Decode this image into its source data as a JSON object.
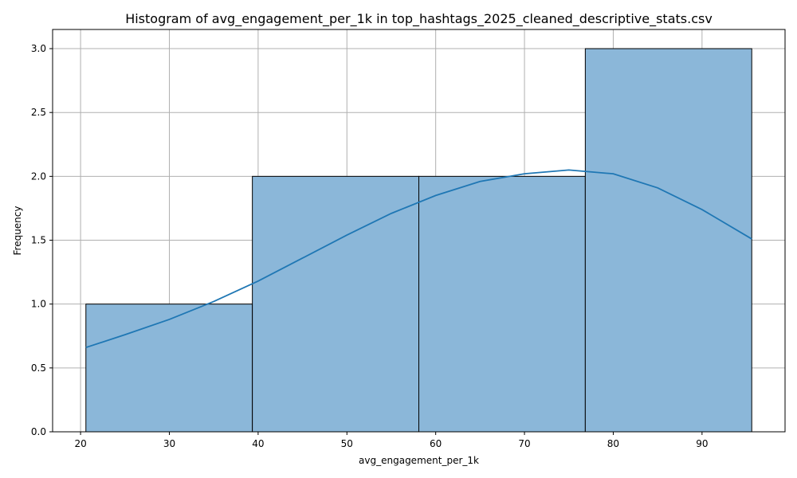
{
  "chart_data": {
    "type": "bar",
    "title": "Histogram of avg_engagement_per_1k in top_hashtags_2025_cleaned_descriptive_stats.csv",
    "xlabel": "avg_engagement_per_1k",
    "ylabel": "Frequency",
    "bins": [
      {
        "start": 20.6,
        "end": 39.35,
        "count": 1
      },
      {
        "start": 39.35,
        "end": 58.1,
        "count": 2
      },
      {
        "start": 58.1,
        "end": 76.85,
        "count": 2
      },
      {
        "start": 76.85,
        "end": 95.6,
        "count": 3
      }
    ],
    "kde": {
      "x": [
        20.6,
        25,
        30,
        35,
        40,
        45,
        50,
        55,
        60,
        65,
        70,
        75,
        80,
        85,
        90,
        95.6
      ],
      "y": [
        0.66,
        0.76,
        0.88,
        1.02,
        1.18,
        1.36,
        1.54,
        1.71,
        1.85,
        1.96,
        2.02,
        2.05,
        2.02,
        1.91,
        1.74,
        1.51
      ]
    },
    "xlim": [
      16.85,
      99.35
    ],
    "ylim": [
      0,
      3.15
    ],
    "xticks": [
      20,
      30,
      40,
      50,
      60,
      70,
      80,
      90
    ],
    "yticks": [
      0.0,
      0.5,
      1.0,
      1.5,
      2.0,
      2.5,
      3.0
    ],
    "grid": true,
    "colors": {
      "bar_fill": "#8bb7d9",
      "bar_edge": "#000000",
      "kde_line": "#1f77b4",
      "grid": "#b0b0b0"
    }
  }
}
